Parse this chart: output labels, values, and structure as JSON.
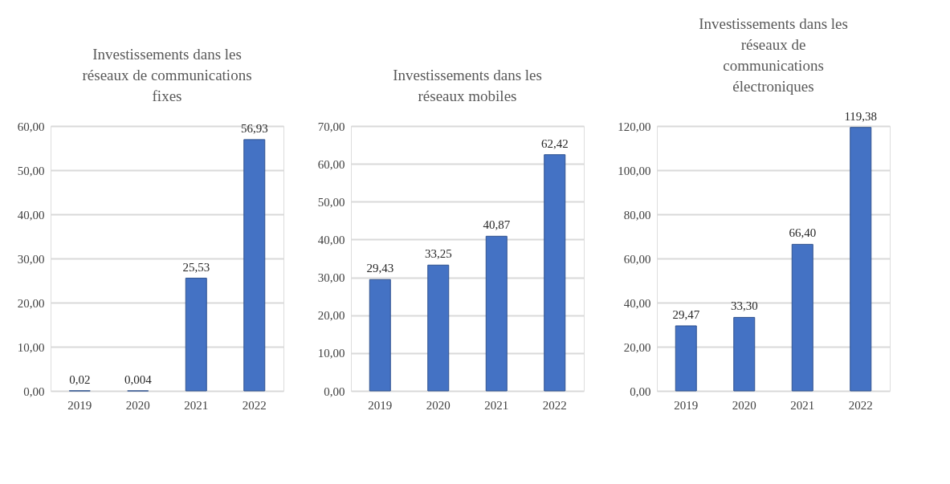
{
  "chart_data": [
    {
      "type": "bar",
      "title": "Investissements dans les\nréseaux de communications\nfixes",
      "categories": [
        "2019",
        "2020",
        "2021",
        "2022"
      ],
      "values": [
        0.02,
        0.004,
        25.53,
        56.93
      ],
      "value_labels": [
        "0,02",
        "0,004",
        "25,53",
        "56,93"
      ],
      "color": "#4472c4",
      "ylim": [
        0,
        60
      ],
      "yticks": [
        {
          "value": 0,
          "label": "0,00"
        },
        {
          "value": 10,
          "label": "10,00"
        },
        {
          "value": 20,
          "label": "20,00"
        },
        {
          "value": 30,
          "label": "30,00"
        },
        {
          "value": 40,
          "label": "40,00"
        },
        {
          "value": 50,
          "label": "50,00"
        },
        {
          "value": 60,
          "label": "60,00"
        }
      ],
      "grid": "y"
    },
    {
      "type": "bar",
      "title": "Investissements dans les\nréseaux mobiles",
      "categories": [
        "2019",
        "2020",
        "2021",
        "2022"
      ],
      "values": [
        29.43,
        33.25,
        40.87,
        62.42
      ],
      "value_labels": [
        "29,43",
        "33,25",
        "40,87",
        "62,42"
      ],
      "color": "#4472c4",
      "ylim": [
        0,
        70
      ],
      "yticks": [
        {
          "value": 0,
          "label": "0,00"
        },
        {
          "value": 10,
          "label": "10,00"
        },
        {
          "value": 20,
          "label": "20,00"
        },
        {
          "value": 30,
          "label": "30,00"
        },
        {
          "value": 40,
          "label": "40,00"
        },
        {
          "value": 50,
          "label": "50,00"
        },
        {
          "value": 60,
          "label": "60,00"
        },
        {
          "value": 70,
          "label": "70,00"
        }
      ],
      "grid": "y"
    },
    {
      "type": "bar",
      "title": "Investissements dans les\nréseaux de\ncommunications\nélectroniques",
      "categories": [
        "2019",
        "2020",
        "2021",
        "2022"
      ],
      "values": [
        29.47,
        33.3,
        66.4,
        119.38
      ],
      "value_labels": [
        "29,47",
        "33,30",
        "66,40",
        "119,38"
      ],
      "color": "#4472c4",
      "ylim": [
        0,
        120
      ],
      "yticks": [
        {
          "value": 0,
          "label": "0,00"
        },
        {
          "value": 20,
          "label": "20,00"
        },
        {
          "value": 40,
          "label": "40,00"
        },
        {
          "value": 60,
          "label": "60,00"
        },
        {
          "value": 80,
          "label": "80,00"
        },
        {
          "value": 100,
          "label": "100,00"
        },
        {
          "value": 120,
          "label": "120,00"
        }
      ],
      "grid": "y"
    }
  ]
}
